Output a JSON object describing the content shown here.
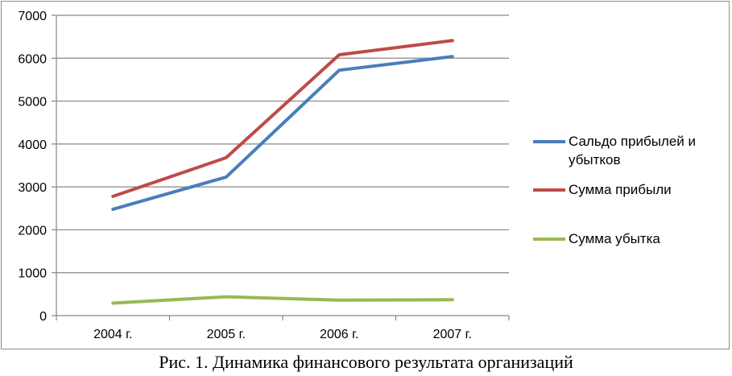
{
  "caption": "Рис. 1. Динамика финансового результата организаций",
  "chart_data": {
    "type": "line",
    "title": "",
    "xlabel": "",
    "ylabel": "",
    "categories": [
      "2004 г.",
      "2005 г.",
      "2006 г.",
      "2007 г."
    ],
    "ylim": [
      0,
      7000
    ],
    "yticks": [
      0,
      1000,
      2000,
      3000,
      4000,
      5000,
      6000,
      7000
    ],
    "grid": "horizontal",
    "legend_position": "right",
    "series": [
      {
        "name": "Сальдо прибылей и убытков",
        "legend_lines": [
          "Сальдо прибылей и",
          "убытков"
        ],
        "color": "#4a7ebb",
        "values": [
          2480,
          3230,
          5720,
          6040
        ]
      },
      {
        "name": "Сумма прибыли",
        "legend_lines": [
          "Сумма прибыли"
        ],
        "color": "#be4b48",
        "values": [
          2780,
          3680,
          6080,
          6410
        ]
      },
      {
        "name": "Сумма убытка",
        "legend_lines": [
          "Сумма убытка"
        ],
        "color": "#98b954",
        "values": [
          290,
          440,
          360,
          370
        ]
      }
    ]
  }
}
